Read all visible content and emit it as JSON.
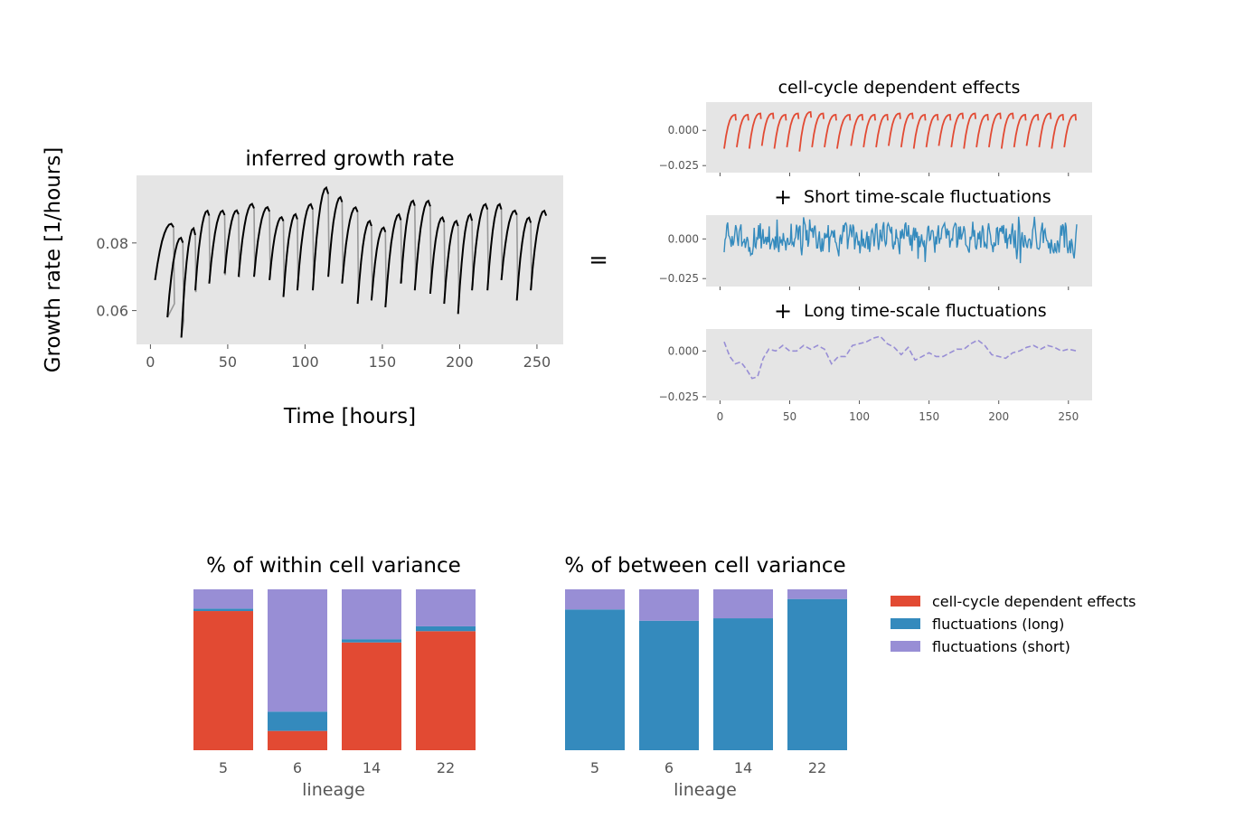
{
  "chart_data": [
    {
      "type": "line",
      "title": "inferred growth rate",
      "xlabel": "Time [hours]",
      "ylabel": "Growth rate [1/hours]",
      "xlim": [
        -9,
        267
      ],
      "ylim": [
        0.05,
        0.1
      ],
      "xticks": [
        0,
        50,
        100,
        150,
        200,
        250
      ],
      "yticks": [
        0.06,
        0.08
      ],
      "ytick_labels": [
        "0.06",
        "0.08"
      ],
      "grid": false,
      "series": [
        {
          "color": "#000000",
          "cycles": [
            [
              3,
              15,
              0.069,
              0.086
            ],
            [
              11,
              21,
              0.058,
              0.082
            ],
            [
              20,
              29,
              0.052,
              0.085
            ],
            [
              29,
              38,
              0.066,
              0.09
            ],
            [
              38,
              48,
              0.068,
              0.09
            ],
            [
              48,
              57,
              0.071,
              0.09
            ],
            [
              57,
              67,
              0.07,
              0.092
            ],
            [
              67,
              77,
              0.07,
              0.091
            ],
            [
              77,
              86,
              0.069,
              0.088
            ],
            [
              86,
              95,
              0.064,
              0.089
            ],
            [
              95,
              105,
              0.066,
              0.092
            ],
            [
              105,
              115,
              0.066,
              0.097
            ],
            [
              115,
              124,
              0.07,
              0.094
            ],
            [
              124,
              134,
              0.068,
              0.091
            ],
            [
              134,
              143,
              0.062,
              0.087
            ],
            [
              143,
              152,
              0.063,
              0.085
            ],
            [
              152,
              162,
              0.061,
              0.089
            ],
            [
              162,
              171,
              0.068,
              0.093
            ],
            [
              171,
              181,
              0.066,
              0.093
            ],
            [
              181,
              190,
              0.065,
              0.088
            ],
            [
              190,
              199,
              0.062,
              0.087
            ],
            [
              199,
              208,
              0.059,
              0.089
            ],
            [
              208,
              218,
              0.066,
              0.092
            ],
            [
              218,
              227,
              0.066,
              0.092
            ],
            [
              227,
              237,
              0.069,
              0.09
            ],
            [
              237,
              246,
              0.063,
              0.088
            ],
            [
              246,
              256,
              0.066,
              0.09
            ]
          ]
        }
      ]
    },
    {
      "type": "line",
      "title": "cell-cycle dependent effects",
      "xlim": [
        -10,
        267
      ],
      "ylim": [
        -0.03,
        0.02
      ],
      "xticks": [
        0,
        50,
        100,
        150,
        200,
        250
      ],
      "yticks": [
        -0.025,
        0.0
      ],
      "ytick_labels": [
        "−0.025",
        "0.000"
      ],
      "grid": false,
      "series": [
        {
          "color": "#E24A33",
          "cycles": [
            [
              3,
              12,
              -0.013,
              0.011
            ],
            [
              12,
              21,
              -0.012,
              0.011
            ],
            [
              21,
              30,
              -0.013,
              0.012
            ],
            [
              30,
              39,
              -0.011,
              0.012
            ],
            [
              39,
              48,
              -0.013,
              0.011
            ],
            [
              48,
              57,
              -0.012,
              0.012
            ],
            [
              57,
              66,
              -0.015,
              0.013
            ],
            [
              66,
              75,
              -0.012,
              0.012
            ],
            [
              75,
              84,
              -0.012,
              0.011
            ],
            [
              84,
              94,
              -0.013,
              0.011
            ],
            [
              94,
              103,
              -0.011,
              0.011
            ],
            [
              103,
              112,
              -0.012,
              0.011
            ],
            [
              112,
              121,
              -0.012,
              0.011
            ],
            [
              121,
              130,
              -0.011,
              0.012
            ],
            [
              130,
              139,
              -0.012,
              0.012
            ],
            [
              139,
              148,
              -0.013,
              0.011
            ],
            [
              148,
              157,
              -0.012,
              0.011
            ],
            [
              157,
              166,
              -0.011,
              0.011
            ],
            [
              166,
              175,
              -0.012,
              0.012
            ],
            [
              175,
              184,
              -0.013,
              0.012
            ],
            [
              184,
              193,
              -0.012,
              0.011
            ],
            [
              193,
              202,
              -0.012,
              0.012
            ],
            [
              202,
              211,
              -0.013,
              0.012
            ],
            [
              211,
              220,
              -0.012,
              0.011
            ],
            [
              220,
              229,
              -0.011,
              0.011
            ],
            [
              229,
              238,
              -0.012,
              0.012
            ],
            [
              238,
              247,
              -0.013,
              0.011
            ],
            [
              247,
              256,
              -0.012,
              0.011
            ]
          ]
        }
      ]
    },
    {
      "type": "line",
      "title": "Short time-scale fluctuations",
      "title_prefix": "+",
      "xlim": [
        -10,
        267
      ],
      "ylim": [
        -0.03,
        0.015
      ],
      "xticks": [
        0,
        50,
        100,
        150,
        200,
        250
      ],
      "yticks": [
        -0.025,
        0.0
      ],
      "ytick_labels": [
        "−0.025",
        "0.000"
      ],
      "grid": false,
      "series": [
        {
          "color": "#348ABD",
          "x_range": [
            3,
            256
          ],
          "y_range": [
            -0.021,
            0.014
          ],
          "samples": 400
        }
      ]
    },
    {
      "type": "line",
      "title": "Long time-scale fluctuations",
      "title_prefix": "+",
      "xlim": [
        -10,
        267
      ],
      "xticks": [
        0,
        50,
        100,
        150,
        200,
        250
      ],
      "xtick_labels": [
        "0",
        "50",
        "100",
        "150",
        "200",
        "250"
      ],
      "ylim": [
        -0.027,
        0.012
      ],
      "yticks": [
        -0.025,
        0.0
      ],
      "ytick_labels": [
        "−0.025",
        "0.000"
      ],
      "grid": false,
      "series": [
        {
          "color": "#988ED5",
          "style": "dashed",
          "x": [
            3,
            7,
            11,
            15,
            19,
            23,
            27,
            31,
            35,
            40,
            45,
            50,
            55,
            60,
            65,
            70,
            75,
            80,
            85,
            90,
            95,
            100,
            105,
            110,
            115,
            120,
            125,
            130,
            135,
            140,
            145,
            150,
            155,
            160,
            165,
            170,
            175,
            180,
            185,
            190,
            195,
            200,
            205,
            210,
            215,
            220,
            225,
            230,
            235,
            240,
            245,
            250,
            256
          ],
          "y": [
            0.005,
            -0.003,
            -0.007,
            -0.006,
            -0.01,
            -0.015,
            -0.014,
            -0.004,
            0.001,
            0.0,
            0.003,
            0.0,
            0.0,
            0.003,
            0.001,
            0.003,
            0.001,
            -0.007,
            -0.003,
            -0.003,
            0.003,
            0.004,
            0.005,
            0.007,
            0.008,
            0.004,
            0.002,
            -0.002,
            0.002,
            -0.005,
            -0.003,
            -0.001,
            -0.003,
            -0.003,
            -0.001,
            0.001,
            0.001,
            0.004,
            0.006,
            0.003,
            -0.002,
            -0.003,
            -0.004,
            -0.001,
            0.0,
            0.002,
            0.003,
            0.001,
            0.003,
            0.002,
            0.0,
            0.001,
            0.0
          ]
        }
      ]
    },
    {
      "type": "bar",
      "stacked": true,
      "title": "% of within cell variance",
      "xlabel": "lineage",
      "categories": [
        "5",
        "6",
        "14",
        "22"
      ],
      "ylim": [
        0,
        100
      ],
      "series": [
        {
          "name": "cell-cycle dependent effects",
          "color": "#E24A33",
          "values": [
            86.5,
            12,
            67,
            74
          ]
        },
        {
          "name": "fluctuations (long)",
          "color": "#348ABD",
          "values": [
            1.5,
            12,
            2,
            3
          ]
        },
        {
          "name": "fluctuations (short)",
          "color": "#988ED5",
          "values": [
            12,
            76,
            31,
            23
          ]
        }
      ]
    },
    {
      "type": "bar",
      "stacked": true,
      "title": "% of between cell variance",
      "xlabel": "lineage",
      "categories": [
        "5",
        "6",
        "14",
        "22"
      ],
      "ylim": [
        0,
        100
      ],
      "series": [
        {
          "name": "cell-cycle dependent effects",
          "color": "#E24A33",
          "values": [
            0,
            0,
            0,
            0
          ]
        },
        {
          "name": "fluctuations (long)",
          "color": "#348ABD",
          "values": [
            87.5,
            80.5,
            82,
            94
          ]
        },
        {
          "name": "fluctuations (short)",
          "color": "#988ED5",
          "values": [
            12.5,
            19.5,
            18,
            6
          ]
        }
      ]
    }
  ],
  "equals_sign": "=",
  "legend": {
    "placement": "right",
    "entries": [
      {
        "label": "cell-cycle dependent effects",
        "color": "#E24A33"
      },
      {
        "label": "fluctuations (long)",
        "color": "#348ABD"
      },
      {
        "label": "fluctuations (short)",
        "color": "#988ED5"
      }
    ]
  },
  "colors": {
    "axes_bg": "#E5E5E5",
    "text": "#555555",
    "title": "#000000",
    "ghost_line": "#999999"
  }
}
